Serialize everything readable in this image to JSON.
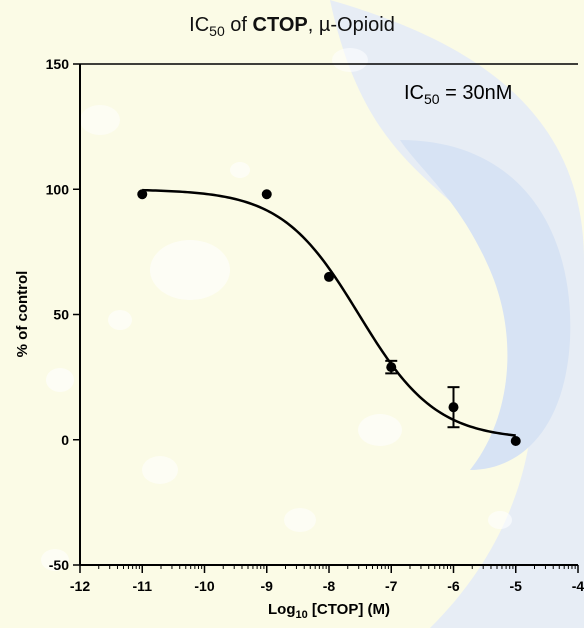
{
  "chart_data": {
    "type": "scatter",
    "title": {
      "prefix": "IC",
      "subscript": "50",
      "middle": " of ",
      "bold": "CTOP",
      "suffix": ", µ-Opioid"
    },
    "xlabel": {
      "prefix": "Log",
      "subscript": "10",
      "suffix": " [CTOP] (M)"
    },
    "ylabel": "% of control",
    "annotation": {
      "prefix": "IC",
      "subscript": "50",
      "suffix": " = 30nM"
    },
    "xlim": [
      -12,
      -4
    ],
    "ylim": [
      -50,
      150
    ],
    "x_ticks": [
      "-12",
      "-11",
      "-10",
      "-9",
      "-8",
      "-7",
      "-6",
      "-5",
      "-4"
    ],
    "y_ticks": [
      "150",
      "100",
      "50",
      "0",
      "-50"
    ],
    "points": [
      {
        "x": -11,
        "y": 98,
        "err": 0
      },
      {
        "x": -9,
        "y": 98,
        "err": 0
      },
      {
        "x": -8,
        "y": 65,
        "err": 0
      },
      {
        "x": -7,
        "y": 29,
        "err": 2.5
      },
      {
        "x": -6,
        "y": 13,
        "err": 8
      },
      {
        "x": -5,
        "y": -0.5,
        "err": 0
      }
    ],
    "fit": {
      "model": "sigmoidal dose-response",
      "top": 100,
      "bottom": 0,
      "log_ic50": -7.52,
      "hill_slope": -0.7,
      "x_range": [
        -11,
        -5
      ]
    },
    "grid": false,
    "legend": "none",
    "colors": {
      "points": "#000000",
      "curve": "#000000",
      "background": "#fbfbe6"
    }
  }
}
